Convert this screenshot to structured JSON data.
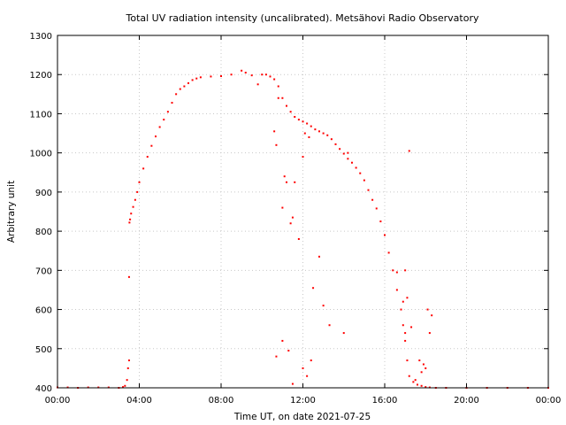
{
  "chart_data": {
    "type": "scatter",
    "title": "Total UV radiation intensity (uncalibrated). Metsähovi Radio Observatory",
    "xlabel": "Time UT, on date 2021-07-25",
    "ylabel": "Arbitrary unit",
    "xlim": [
      0,
      24
    ],
    "ylim": [
      400,
      1300
    ],
    "x_ticks": [
      0,
      4,
      8,
      12,
      16,
      20,
      24
    ],
    "x_tick_labels": [
      "00:00",
      "04:00",
      "08:00",
      "12:00",
      "16:00",
      "20:00",
      "00:00"
    ],
    "y_ticks": [
      400,
      500,
      600,
      700,
      800,
      900,
      1000,
      1100,
      1200,
      1300
    ],
    "y_tick_labels": [
      "400",
      "500",
      "600",
      "700",
      "800",
      "900",
      "1000",
      "1100",
      "1200",
      "1300"
    ],
    "grid": true,
    "marker_color": "#ff0000",
    "series": [
      {
        "x": [
          0.0,
          0.5,
          1.0,
          1.5,
          2.0,
          2.5,
          3.0,
          3.2,
          3.3,
          3.4,
          3.45,
          3.5,
          3.52,
          3.55,
          3.6,
          3.7,
          3.8,
          3.9,
          4.0,
          4.2,
          4.4,
          4.6,
          4.8,
          5.0,
          5.2,
          5.4,
          5.6,
          5.8,
          6.0,
          6.2,
          6.4,
          6.6,
          6.8,
          7.0,
          7.5,
          8.0,
          8.5,
          9.0,
          9.2,
          9.5,
          9.8,
          10.0,
          10.2,
          10.4,
          10.6,
          10.8,
          11.0,
          11.2,
          11.4,
          11.6,
          11.8,
          12.0,
          12.2,
          12.4,
          12.6,
          12.8,
          13.0,
          13.2,
          13.4,
          13.6,
          13.8,
          14.0,
          14.2,
          14.4,
          14.6,
          14.8,
          15.0,
          15.2,
          15.4,
          15.6,
          15.8,
          16.0,
          16.2,
          16.4,
          16.6,
          16.8,
          16.9,
          17.0,
          17.1,
          17.2,
          17.4,
          17.6,
          17.8,
          18.0,
          18.2,
          18.5,
          19.0,
          20.0,
          21.0,
          22.0,
          23.0,
          24.0,
          10.6,
          10.7,
          10.8,
          11.0,
          11.1,
          11.2,
          11.4,
          11.5,
          11.6,
          11.8,
          12.0,
          12.1,
          12.3,
          12.5,
          12.8,
          13.0,
          13.3,
          14.0,
          14.2,
          16.6,
          16.9,
          17.0,
          17.0,
          17.1,
          17.2,
          17.3,
          17.5,
          17.7,
          17.8,
          17.9,
          18.0,
          18.1,
          18.2,
          18.3,
          10.7,
          11.0,
          11.3,
          11.5,
          12.0,
          12.2,
          12.4,
          3.5
        ],
        "y": [
          401,
          401,
          400,
          401,
          401,
          401,
          400,
          402,
          405,
          420,
          450,
          470,
          822,
          830,
          845,
          862,
          880,
          900,
          925,
          960,
          990,
          1018,
          1042,
          1066,
          1085,
          1105,
          1128,
          1150,
          1163,
          1170,
          1178,
          1186,
          1190,
          1193,
          1195,
          1196,
          1200,
          1210,
          1205,
          1198,
          1175,
          1200,
          1200,
          1195,
          1188,
          1170,
          1140,
          1120,
          1105,
          1092,
          1085,
          1080,
          1075,
          1068,
          1060,
          1055,
          1050,
          1045,
          1035,
          1022,
          1010,
          998,
          985,
          975,
          962,
          948,
          930,
          905,
          880,
          858,
          825,
          790,
          745,
          700,
          650,
          600,
          560,
          520,
          470,
          430,
          415,
          408,
          405,
          402,
          401,
          400,
          400,
          400,
          400,
          400,
          400,
          400,
          1055,
          1020,
          1140,
          860,
          940,
          925,
          820,
          835,
          925,
          780,
          990,
          1050,
          1040,
          655,
          735,
          610,
          560,
          540,
          1000,
          695,
          620,
          540,
          700,
          630,
          1005,
          555,
          420,
          470,
          440,
          460,
          450,
          600,
          540,
          585,
          480,
          520,
          495,
          410,
          450,
          430,
          470,
          683
        ]
      }
    ]
  }
}
